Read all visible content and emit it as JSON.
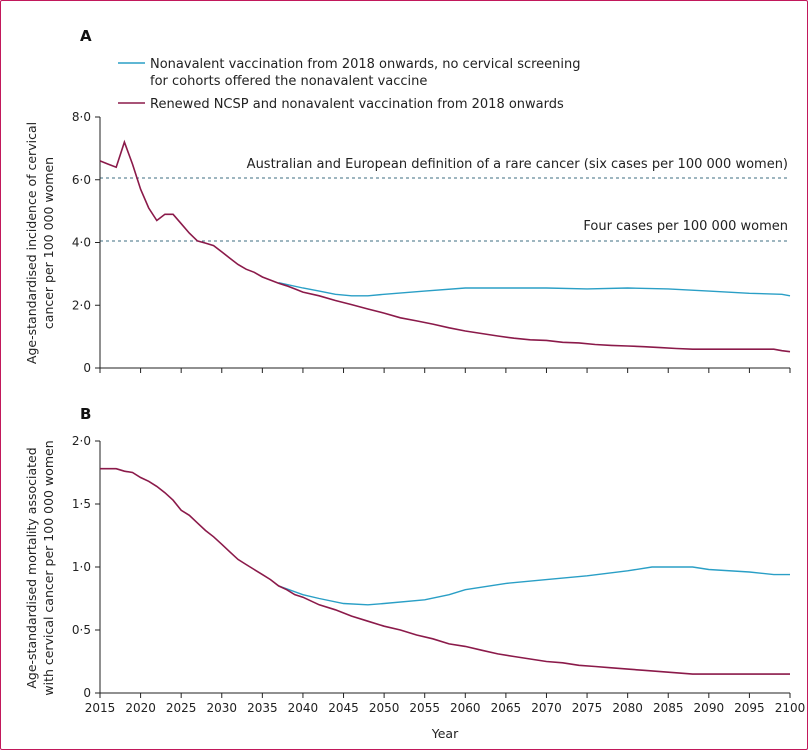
{
  "chart_data": [
    {
      "type": "line",
      "panel_label": "A",
      "ylabel_line1": "Age-standardised incidence of cervical",
      "ylabel_line2": "cancer per 100 000 women",
      "xlabel": "",
      "ylim": [
        0,
        8
      ],
      "yticks": [
        "0",
        "2·0",
        "4·0",
        "6·0",
        "8·0"
      ],
      "ytick_values": [
        0,
        2,
        4,
        6,
        8
      ],
      "xlim": [
        2015,
        2100
      ],
      "reference_lines": [
        {
          "y": 6,
          "label": "Australian and European definition of a rare cancer (six cases per 100 000 women)"
        },
        {
          "y": 4,
          "label": "Four cases per 100 000 women"
        }
      ],
      "legend": [
        {
          "line1": "Nonavalent vaccination from 2018 onwards, no cervical screening",
          "line2": "for cohorts offered the nonavalent vaccine",
          "color": "#2a9fc6"
        },
        {
          "line1": "Renewed NCSP and nonavalent vaccination from 2018 onwards",
          "line2": "",
          "color": "#8b1a4a"
        }
      ],
      "series": [
        {
          "color": "#2a9fc6",
          "x": [
            2037,
            2040,
            2042,
            2044,
            2046,
            2048,
            2050,
            2055,
            2060,
            2065,
            2070,
            2075,
            2080,
            2085,
            2090,
            2095,
            2099,
            2100
          ],
          "y": [
            2.72,
            2.55,
            2.45,
            2.35,
            2.3,
            2.3,
            2.35,
            2.45,
            2.55,
            2.55,
            2.55,
            2.52,
            2.55,
            2.52,
            2.45,
            2.38,
            2.35,
            2.3
          ]
        },
        {
          "color": "#8b1a4a",
          "x": [
            2015,
            2016,
            2017,
            2018,
            2019,
            2020,
            2021,
            2022,
            2023,
            2024,
            2025,
            2026,
            2027,
            2028,
            2029,
            2030,
            2031,
            2032,
            2033,
            2034,
            2035,
            2036,
            2037,
            2038,
            2039,
            2040,
            2042,
            2044,
            2046,
            2048,
            2050,
            2052,
            2054,
            2056,
            2058,
            2060,
            2062,
            2064,
            2066,
            2068,
            2070,
            2072,
            2074,
            2076,
            2078,
            2080,
            2082,
            2084,
            2086,
            2088,
            2090,
            2092,
            2094,
            2096,
            2098,
            2099,
            2100
          ],
          "y": [
            6.6,
            6.5,
            6.4,
            7.2,
            6.5,
            5.7,
            5.1,
            4.7,
            4.9,
            4.9,
            4.6,
            4.3,
            4.05,
            3.98,
            3.9,
            3.7,
            3.5,
            3.3,
            3.15,
            3.05,
            2.9,
            2.8,
            2.7,
            2.62,
            2.52,
            2.42,
            2.3,
            2.15,
            2.02,
            1.88,
            1.75,
            1.6,
            1.5,
            1.4,
            1.28,
            1.18,
            1.1,
            1.02,
            0.95,
            0.9,
            0.88,
            0.82,
            0.8,
            0.75,
            0.72,
            0.7,
            0.68,
            0.65,
            0.62,
            0.6,
            0.6,
            0.6,
            0.6,
            0.6,
            0.6,
            0.55,
            0.52
          ]
        }
      ]
    },
    {
      "type": "line",
      "panel_label": "B",
      "ylabel_line1": "Age-standardised mortality associated",
      "ylabel_line2": "with cervical cancer per 100 000 women",
      "xlabel": "Year",
      "ylim": [
        0,
        2
      ],
      "yticks": [
        "0",
        "0·5",
        "1·0",
        "1·5",
        "2·0"
      ],
      "ytick_values": [
        0,
        0.5,
        1,
        1.5,
        2
      ],
      "xlim": [
        2015,
        2100
      ],
      "xticks": [
        "2015",
        "2020",
        "2025",
        "2030",
        "2035",
        "2040",
        "2045",
        "2050",
        "2055",
        "2060",
        "2065",
        "2070",
        "2075",
        "2080",
        "2085",
        "2090",
        "2095",
        "2100"
      ],
      "xtick_values": [
        2015,
        2020,
        2025,
        2030,
        2035,
        2040,
        2045,
        2050,
        2055,
        2060,
        2065,
        2070,
        2075,
        2080,
        2085,
        2090,
        2095,
        2100
      ],
      "series": [
        {
          "color": "#2a9fc6",
          "x": [
            2037,
            2040,
            2042,
            2045,
            2048,
            2050,
            2055,
            2058,
            2060,
            2065,
            2070,
            2075,
            2080,
            2083,
            2085,
            2088,
            2090,
            2095,
            2098,
            2100
          ],
          "y": [
            0.85,
            0.78,
            0.75,
            0.71,
            0.7,
            0.71,
            0.74,
            0.78,
            0.82,
            0.87,
            0.9,
            0.93,
            0.97,
            1.0,
            1.0,
            1.0,
            0.98,
            0.96,
            0.94,
            0.94
          ]
        },
        {
          "color": "#8b1a4a",
          "x": [
            2015,
            2017,
            2018,
            2019,
            2020,
            2021,
            2022,
            2023,
            2024,
            2025,
            2026,
            2027,
            2028,
            2029,
            2030,
            2031,
            2032,
            2033,
            2034,
            2035,
            2036,
            2037,
            2038,
            2039,
            2040,
            2042,
            2044,
            2046,
            2048,
            2050,
            2052,
            2054,
            2056,
            2058,
            2060,
            2062,
            2064,
            2066,
            2068,
            2070,
            2072,
            2074,
            2076,
            2078,
            2080,
            2082,
            2084,
            2086,
            2088,
            2090,
            2092,
            2094,
            2096,
            2098,
            2100
          ],
          "y": [
            1.78,
            1.78,
            1.76,
            1.75,
            1.71,
            1.68,
            1.64,
            1.59,
            1.53,
            1.45,
            1.41,
            1.35,
            1.29,
            1.24,
            1.18,
            1.12,
            1.06,
            1.02,
            0.98,
            0.94,
            0.9,
            0.85,
            0.82,
            0.78,
            0.76,
            0.7,
            0.66,
            0.61,
            0.57,
            0.53,
            0.5,
            0.46,
            0.43,
            0.39,
            0.37,
            0.34,
            0.31,
            0.29,
            0.27,
            0.25,
            0.24,
            0.22,
            0.21,
            0.2,
            0.19,
            0.18,
            0.17,
            0.16,
            0.15,
            0.15,
            0.15,
            0.15,
            0.15,
            0.15,
            0.15
          ]
        }
      ]
    }
  ]
}
